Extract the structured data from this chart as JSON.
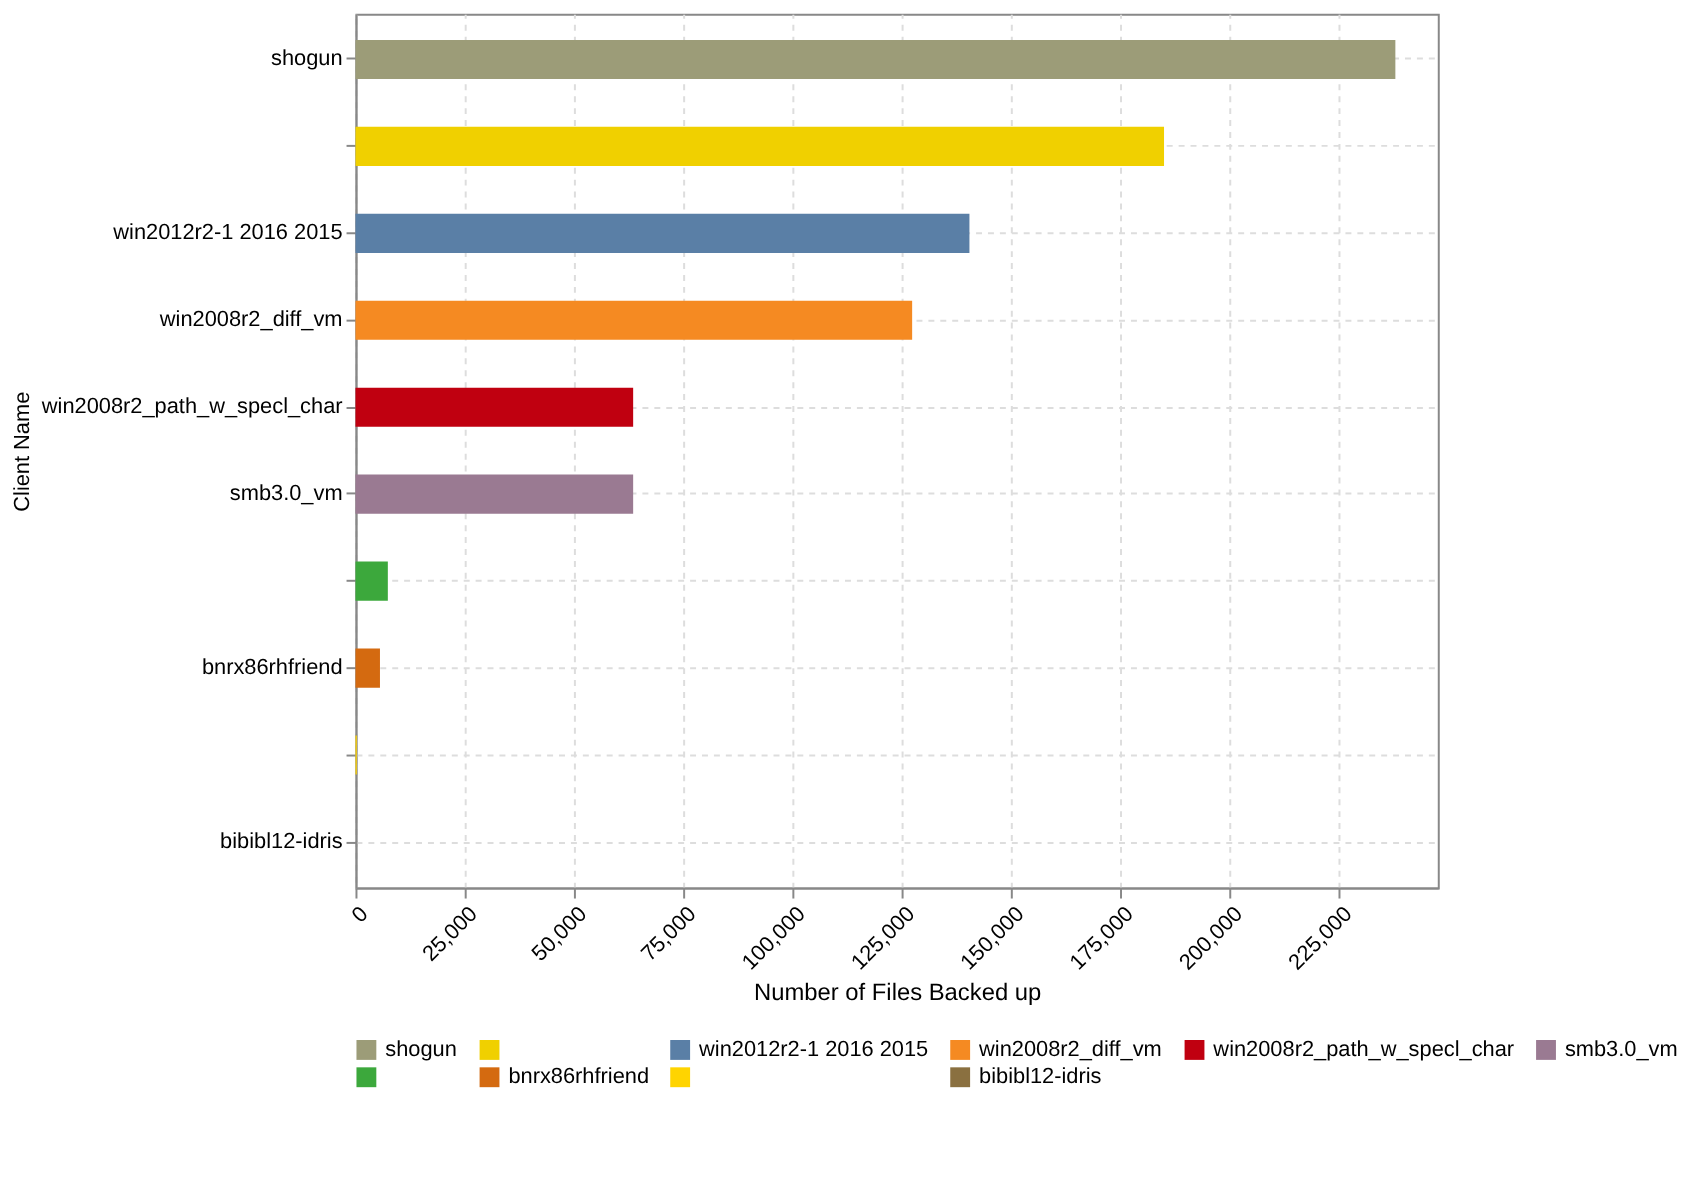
{
  "chart_data": {
    "type": "bar",
    "orientation": "horizontal",
    "xlabel": "Number of Files Backed up",
    "ylabel": "Client Name",
    "categories": [
      "shogun",
      null,
      "win2012r2-1 2016 2015",
      "win2008r2_diff_vm",
      "win2008r2_path_w_specl_char",
      "smb3.0_vm",
      null,
      "bnrx86rhfriend",
      null,
      "bibibl12-idris"
    ],
    "series": [
      {
        "name": "shogun",
        "color": "#9c9c78",
        "values": [
          237800,
          null,
          null,
          null,
          null,
          null,
          null,
          null,
          null,
          null
        ]
      },
      {
        "color": "#f0d000",
        "values": [
          null,
          184900,
          null,
          null,
          null,
          null,
          null,
          null,
          null,
          null
        ]
      },
      {
        "name": "win2012r2-1 2016 2015",
        "color": "#5a7fa6",
        "values": [
          null,
          null,
          140400,
          null,
          null,
          null,
          null,
          null,
          null,
          null
        ]
      },
      {
        "name": "win2008r2_diff_vm",
        "color": "#f58a22",
        "values": [
          null,
          null,
          null,
          127300,
          null,
          null,
          null,
          null,
          null,
          null
        ]
      },
      {
        "name": "win2008r2_path_w_specl_char",
        "color": "#c00010",
        "values": [
          null,
          null,
          null,
          null,
          63500,
          null,
          null,
          null,
          null,
          null
        ]
      },
      {
        "name": "smb3.0_vm",
        "color": "#9a7a92",
        "values": [
          null,
          null,
          null,
          null,
          null,
          63500,
          null,
          null,
          null,
          null
        ]
      },
      {
        "color": "#3ca83c",
        "values": [
          null,
          null,
          null,
          null,
          null,
          null,
          7400,
          null,
          null,
          null
        ]
      },
      {
        "name": "bnrx86rhfriend",
        "color": "#d46a10",
        "values": [
          null,
          null,
          null,
          null,
          null,
          null,
          null,
          5600,
          null,
          null
        ]
      },
      {
        "color": "#ffd400",
        "values": [
          null,
          null,
          null,
          null,
          null,
          null,
          null,
          null,
          300,
          null
        ]
      },
      {
        "name": "bibibl12-idris",
        "color": "#8a7040",
        "values": [
          null,
          null,
          null,
          null,
          null,
          null,
          null,
          null,
          null,
          0
        ]
      }
    ],
    "xlim": [
      0,
      247500
    ],
    "xticks": [
      0,
      {
        "value": 25000,
        "label": "25,000"
      },
      {
        "value": 50000,
        "label": "50,000"
      },
      {
        "value": 75000,
        "label": "75,000"
      },
      {
        "value": 100000,
        "label": "100,000"
      },
      {
        "value": 125000,
        "label": "125,000"
      },
      {
        "value": 150000,
        "label": "150,000"
      },
      {
        "value": 175000,
        "label": "175,000"
      },
      {
        "value": 200000,
        "label": "200,000"
      },
      {
        "value": 225000,
        "label": "225,000"
      }
    ],
    "grid": true,
    "legend": "bottom"
  }
}
